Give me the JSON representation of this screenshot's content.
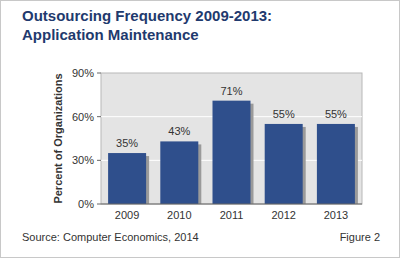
{
  "chart_data": {
    "type": "bar",
    "title": "Outsourcing Frequency 2009-2013:",
    "subtitle": "Application Maintenance",
    "ylabel": "Percent of Organizations",
    "categories": [
      "2009",
      "2010",
      "2011",
      "2012",
      "2013"
    ],
    "values": [
      35,
      43,
      71,
      55,
      55
    ],
    "value_labels": [
      "35%",
      "43%",
      "71%",
      "55%",
      "55%"
    ],
    "data_labels": true,
    "color": "#2f4f8c",
    "ylim": [
      0,
      90
    ],
    "yticks": [
      {
        "value": 0,
        "label": "0%"
      },
      {
        "value": 30,
        "label": "30%"
      },
      {
        "value": 60,
        "label": "60%"
      },
      {
        "value": 90,
        "label": "90%"
      }
    ],
    "grid": true,
    "annotations": [
      "Source: Computer Economics, 2014",
      "Figure 2"
    ]
  }
}
